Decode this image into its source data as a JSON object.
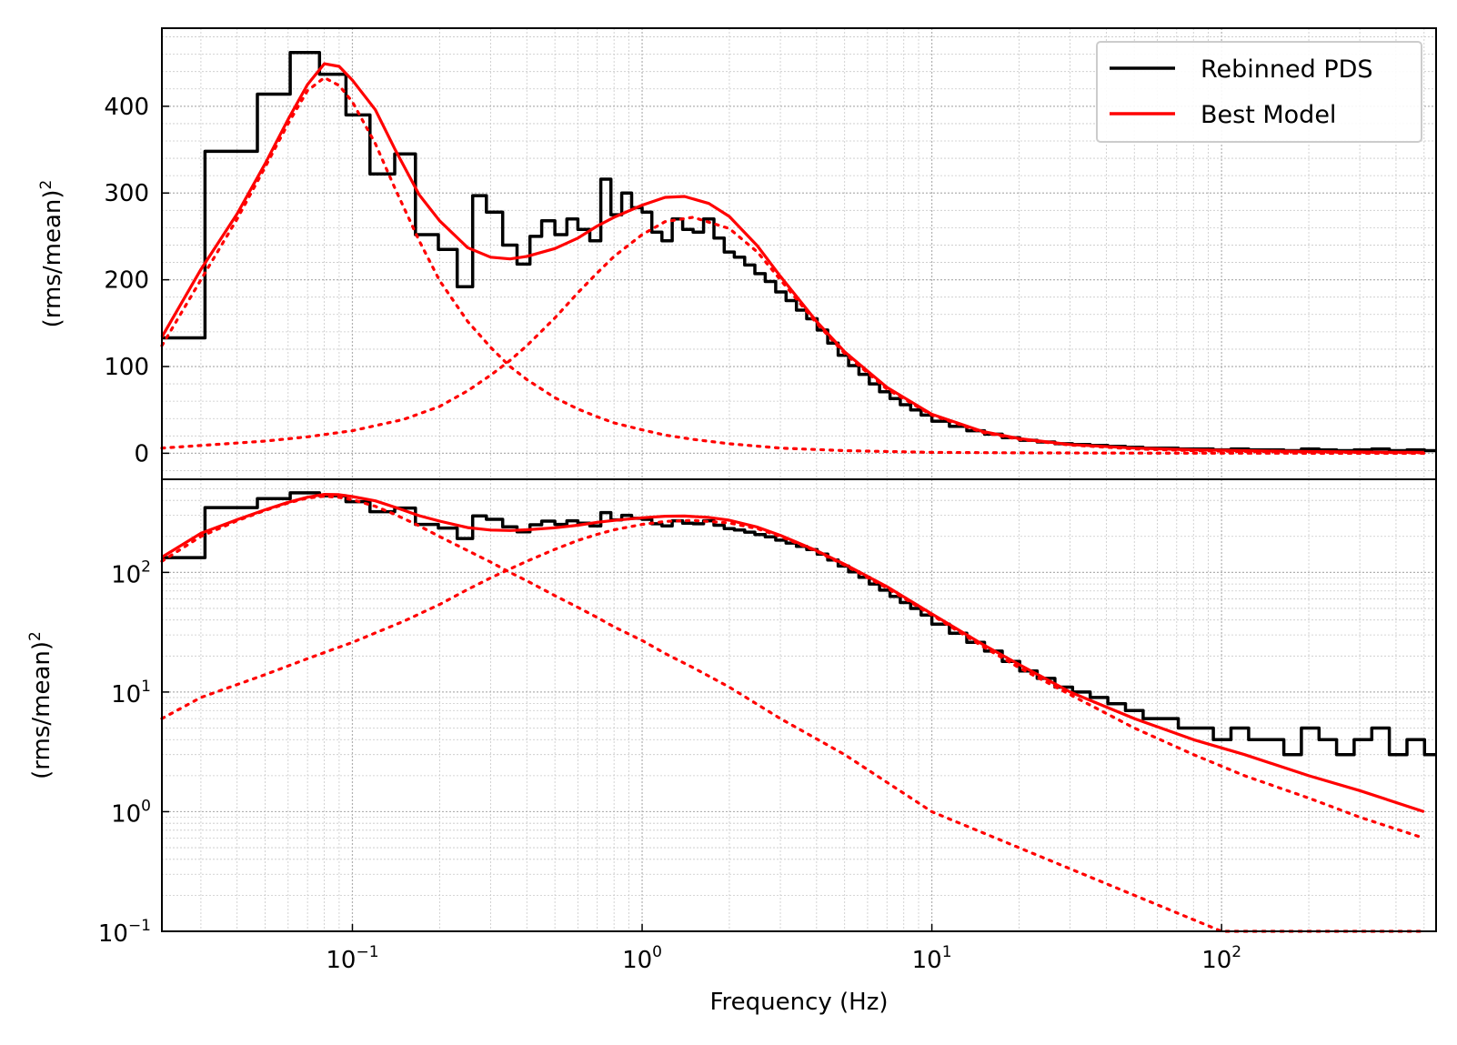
{
  "chart_data": [
    {
      "type": "line",
      "panel": "top",
      "yscale": "linear",
      "xscale": "log",
      "ylabel": "(rms/mean)",
      "ylabel_sup": "2",
      "ylim": [
        -30,
        490
      ],
      "xlim": [
        0.022,
        550
      ],
      "yticks": [
        0,
        100,
        200,
        300,
        400
      ],
      "ytick_labels": [
        "0",
        "100",
        "200",
        "300",
        "400"
      ],
      "grid": true,
      "legend": {
        "placement": "top-right",
        "entries": [
          {
            "label": "Rebinned PDS",
            "color": "#000000",
            "style": "solid"
          },
          {
            "label": "Best Model",
            "color": "#ff0000",
            "style": "solid"
          }
        ]
      },
      "series": [
        {
          "name": "Rebinned PDS",
          "style": "steps",
          "color": "#000000",
          "x": [
            0.022,
            0.031,
            0.047,
            0.061,
            0.077,
            0.095,
            0.115,
            0.14,
            0.165,
            0.198,
            0.23,
            0.26,
            0.29,
            0.33,
            0.37,
            0.41,
            0.45,
            0.5,
            0.55,
            0.6,
            0.66,
            0.72,
            0.78,
            0.85,
            0.92,
            1.0,
            1.08,
            1.17,
            1.27,
            1.38,
            1.5,
            1.63,
            1.77,
            1.92,
            2.08,
            2.26,
            2.45,
            2.66,
            2.89,
            3.14,
            3.41,
            3.7,
            4.02,
            4.37,
            4.75,
            5.16,
            5.6,
            6.08,
            6.6,
            7.17,
            7.78,
            8.45,
            9.18,
            10.0,
            11.5,
            13.2,
            15.2,
            17.5,
            20.1,
            23.1,
            26.6,
            30.6,
            35.2,
            40.5,
            46.6,
            53.6,
            61.6,
            70.9,
            81.5,
            93.7,
            107.8,
            124,
            142.6,
            164,
            188.6,
            216.9,
            249.4,
            286.8,
            329.9,
            379.4,
            436.3,
            501.7
          ],
          "y": [
            133,
            348,
            414,
            462,
            437,
            390,
            322,
            345,
            252,
            235,
            192,
            297,
            278,
            240,
            218,
            250,
            268,
            252,
            270,
            258,
            245,
            316,
            275,
            300,
            283,
            278,
            255,
            245,
            270,
            258,
            255,
            270,
            248,
            232,
            226,
            217,
            207,
            198,
            186,
            176,
            165,
            155,
            142,
            127,
            113,
            101,
            91,
            80,
            71,
            63,
            56,
            50,
            44,
            37,
            31,
            26,
            22,
            18,
            15,
            13,
            11,
            10,
            9,
            8,
            7,
            6,
            6,
            5,
            5,
            4,
            5,
            4,
            4,
            3,
            5,
            4,
            3,
            4,
            5,
            3,
            4,
            3
          ]
        },
        {
          "name": "Best Model",
          "style": "solid",
          "color": "#ff0000",
          "x": [
            0.022,
            0.03,
            0.04,
            0.05,
            0.06,
            0.07,
            0.08,
            0.09,
            0.1,
            0.12,
            0.14,
            0.17,
            0.2,
            0.25,
            0.3,
            0.35,
            0.4,
            0.5,
            0.6,
            0.7,
            0.8,
            1.0,
            1.2,
            1.4,
            1.7,
            2.0,
            2.5,
            3.0,
            4.0,
            5.0,
            7.0,
            10,
            15,
            20,
            30,
            50,
            80,
            120,
            200,
            300,
            500
          ],
          "y": [
            134,
            212,
            276,
            334,
            385,
            425,
            449,
            446,
            430,
            396,
            351,
            298,
            268,
            237,
            226,
            224,
            227,
            236,
            248,
            262,
            272,
            286,
            295,
            296,
            288,
            273,
            239,
            204,
            152,
            117,
            76,
            45,
            25,
            17,
            10,
            6,
            4,
            3,
            2,
            1.5,
            1
          ]
        },
        {
          "name": "",
          "style": "dotted",
          "color": "#ff0000",
          "x": [
            0.022,
            0.03,
            0.04,
            0.05,
            0.06,
            0.07,
            0.08,
            0.09,
            0.1,
            0.12,
            0.14,
            0.17,
            0.2,
            0.25,
            0.3,
            0.35,
            0.4,
            0.5,
            0.6,
            0.7,
            0.8,
            1.0,
            1.2,
            1.5,
            2.0,
            3.0,
            5.0,
            10,
            20,
            50,
            100,
            500
          ],
          "y": [
            124,
            200,
            270,
            330,
            380,
            418,
            433,
            424,
            405,
            357,
            306,
            245,
            199,
            152,
            122,
            100,
            85,
            64,
            51,
            42,
            35,
            27,
            21,
            16,
            11,
            6,
            3,
            1,
            0.5,
            0.2,
            0.1,
            0.02
          ]
        },
        {
          "name": "",
          "style": "dotted",
          "color": "#ff0000",
          "x": [
            0.022,
            0.03,
            0.05,
            0.07,
            0.1,
            0.15,
            0.2,
            0.25,
            0.3,
            0.35,
            0.4,
            0.5,
            0.6,
            0.7,
            0.8,
            1.0,
            1.2,
            1.5,
            2.0,
            2.5,
            3.0,
            4.0,
            5.0,
            7.0,
            10,
            15,
            20,
            30,
            50,
            80,
            120,
            200,
            300,
            500
          ],
          "y": [
            6,
            9,
            14,
            19,
            26,
            39,
            54,
            72,
            90,
            107,
            124,
            156,
            185,
            208,
            227,
            252,
            267,
            272,
            259,
            232,
            200,
            150,
            115,
            74,
            44,
            24,
            16,
            9.5,
            5,
            3,
            2,
            1.3,
            0.9,
            0.6
          ]
        }
      ]
    },
    {
      "type": "line",
      "panel": "bottom",
      "yscale": "log",
      "xscale": "log",
      "xlabel": "Frequency (Hz)",
      "ylabel": "(rms/mean)",
      "ylabel_sup": "2",
      "ylim": [
        0.1,
        600
      ],
      "xlim": [
        0.022,
        550
      ],
      "ytick_labels": [
        {
          "base": "10",
          "exp": "−1",
          "value": 0.1
        },
        {
          "base": "10",
          "exp": "0",
          "value": 1
        },
        {
          "base": "10",
          "exp": "1",
          "value": 10
        },
        {
          "base": "10",
          "exp": "2",
          "value": 100
        }
      ],
      "xtick_labels": [
        {
          "base": "10",
          "exp": "−1",
          "value": 0.1
        },
        {
          "base": "10",
          "exp": "0",
          "value": 1
        },
        {
          "base": "10",
          "exp": "1",
          "value": 10
        },
        {
          "base": "10",
          "exp": "2",
          "value": 100
        }
      ],
      "grid": true,
      "series": [
        {
          "name": "Rebinned PDS",
          "style": "steps",
          "color": "#000000",
          "x": [
            0.022,
            0.031,
            0.047,
            0.061,
            0.077,
            0.095,
            0.115,
            0.14,
            0.165,
            0.198,
            0.23,
            0.26,
            0.29,
            0.33,
            0.37,
            0.41,
            0.45,
            0.5,
            0.55,
            0.6,
            0.66,
            0.72,
            0.78,
            0.85,
            0.92,
            1.0,
            1.08,
            1.17,
            1.27,
            1.38,
            1.5,
            1.63,
            1.77,
            1.92,
            2.08,
            2.26,
            2.45,
            2.66,
            2.89,
            3.14,
            3.41,
            3.7,
            4.02,
            4.37,
            4.75,
            5.16,
            5.6,
            6.08,
            6.6,
            7.17,
            7.78,
            8.45,
            9.18,
            10.0,
            11.5,
            13.2,
            15.2,
            17.5,
            20.1,
            23.1,
            26.6,
            30.6,
            35.2,
            40.5,
            46.6,
            53.6,
            61.6,
            70.9,
            81.5,
            93.7,
            107.8,
            124,
            142.6,
            164,
            188.6,
            216.9,
            249.4,
            286.8,
            329.9,
            379.4,
            436.3,
            501.7
          ],
          "y": [
            133,
            348,
            414,
            462,
            437,
            390,
            322,
            345,
            252,
            235,
            192,
            297,
            278,
            240,
            218,
            250,
            268,
            252,
            270,
            258,
            245,
            316,
            275,
            300,
            283,
            278,
            255,
            245,
            270,
            258,
            255,
            270,
            248,
            232,
            226,
            217,
            207,
            198,
            186,
            176,
            165,
            155,
            142,
            127,
            113,
            101,
            91,
            80,
            71,
            63,
            56,
            50,
            44,
            37,
            31,
            26,
            22,
            18,
            15,
            13,
            11,
            10,
            9,
            8,
            7,
            6,
            6,
            5,
            5,
            4,
            5,
            4,
            4,
            3,
            5,
            4,
            3,
            4,
            5,
            3,
            4,
            3
          ]
        },
        {
          "name": "Best Model",
          "style": "solid",
          "color": "#ff0000",
          "x": [
            0.022,
            0.03,
            0.04,
            0.05,
            0.06,
            0.07,
            0.08,
            0.09,
            0.1,
            0.12,
            0.14,
            0.17,
            0.2,
            0.25,
            0.3,
            0.35,
            0.4,
            0.5,
            0.6,
            0.7,
            0.8,
            1.0,
            1.2,
            1.4,
            1.7,
            2.0,
            2.5,
            3.0,
            4.0,
            5.0,
            7.0,
            10,
            15,
            20,
            30,
            50,
            80,
            120,
            200,
            300,
            500
          ],
          "y": [
            134,
            212,
            276,
            334,
            385,
            425,
            449,
            446,
            430,
            396,
            351,
            298,
            268,
            237,
            226,
            224,
            227,
            236,
            248,
            262,
            272,
            286,
            295,
            296,
            288,
            273,
            239,
            204,
            152,
            117,
            76,
            45,
            25,
            17,
            10,
            6,
            4,
            3,
            2,
            1.5,
            1
          ]
        },
        {
          "name": "",
          "style": "dotted",
          "color": "#ff0000",
          "x": [
            0.022,
            0.03,
            0.04,
            0.05,
            0.06,
            0.07,
            0.08,
            0.09,
            0.1,
            0.12,
            0.14,
            0.17,
            0.2,
            0.25,
            0.3,
            0.35,
            0.4,
            0.5,
            0.6,
            0.7,
            0.8,
            1.0,
            1.2,
            1.5,
            2.0,
            3.0,
            5.0,
            10,
            20,
            50,
            100,
            500
          ],
          "y": [
            124,
            200,
            270,
            330,
            380,
            418,
            433,
            424,
            405,
            357,
            306,
            245,
            199,
            152,
            122,
            100,
            85,
            64,
            51,
            42,
            35,
            27,
            21,
            16,
            11,
            6,
            3,
            1,
            0.5,
            0.2,
            0.1,
            0.02
          ]
        },
        {
          "name": "",
          "style": "dotted",
          "color": "#ff0000",
          "x": [
            0.022,
            0.03,
            0.05,
            0.07,
            0.1,
            0.15,
            0.2,
            0.25,
            0.3,
            0.35,
            0.4,
            0.5,
            0.6,
            0.7,
            0.8,
            1.0,
            1.2,
            1.5,
            2.0,
            2.5,
            3.0,
            4.0,
            5.0,
            7.0,
            10,
            15,
            20,
            30,
            50,
            80,
            120,
            200,
            300,
            500
          ],
          "y": [
            6,
            9,
            14,
            19,
            26,
            39,
            54,
            72,
            90,
            107,
            124,
            156,
            185,
            208,
            227,
            252,
            267,
            272,
            259,
            232,
            200,
            150,
            115,
            74,
            44,
            24,
            16,
            9.5,
            5,
            3,
            2,
            1.3,
            0.9,
            0.6
          ]
        }
      ]
    }
  ]
}
